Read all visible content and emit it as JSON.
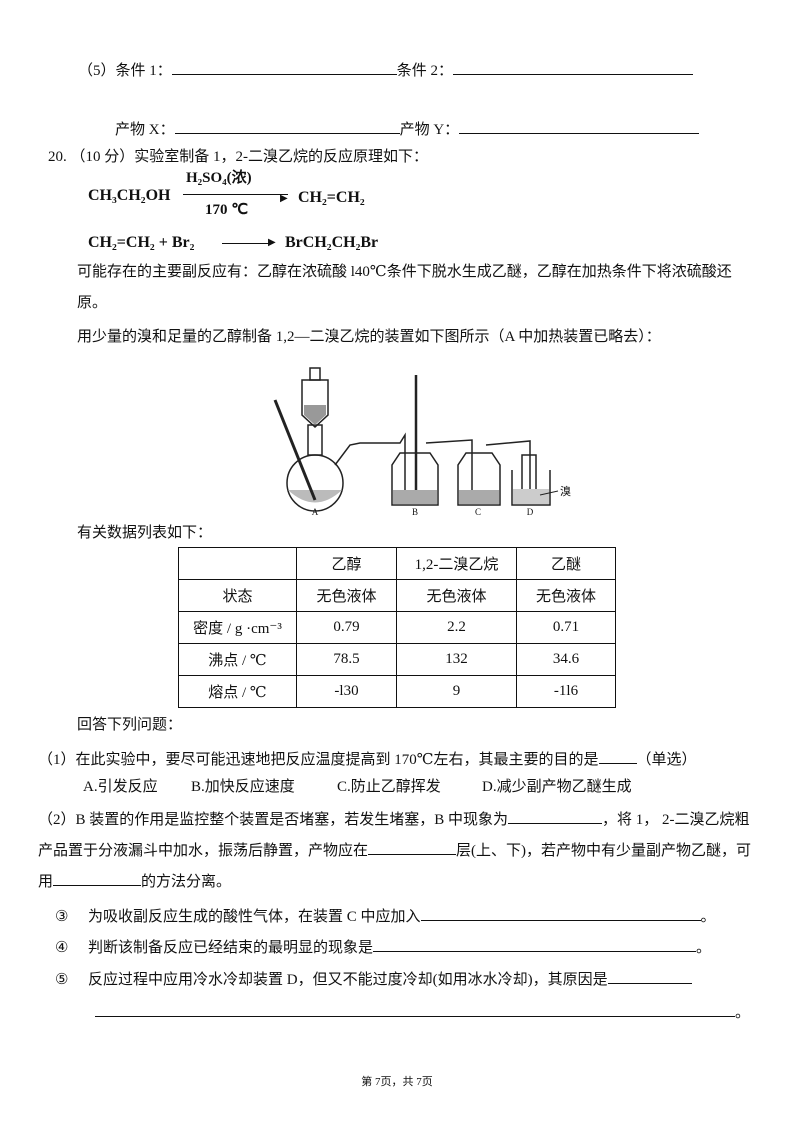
{
  "question5": {
    "condition1": "（5）条件 1：",
    "condition2": "条件 2：",
    "productX": "产物 X：",
    "productY": "产物 Y："
  },
  "question20": {
    "title": "20. （10 分）实验室制备 1，2-二溴乙烷的反应原理如下：",
    "equation1": {
      "reactant": "CH₃CH₂OH",
      "condition_top": "H₂SO₄(浓)",
      "condition_bottom": "170 ℃",
      "product": "CH₂=CH₂"
    },
    "equation2": {
      "reactant": "CH₂=CH₂ + Br₂",
      "product": "BrCH₂CH₂Br"
    },
    "side_reactions": "可能存在的主要副反应有：乙醇在浓硫酸 l40℃条件下脱水生成乙醚，乙醇在加热条件下将浓硫酸还原。",
    "apparatus_intro": "用少量的溴和足量的乙醇制备 1,2—二溴乙烷的装置如下图所示（A 中加热装置已略去）：",
    "figure": {
      "labels": [
        "A",
        "B",
        "C",
        "D"
      ],
      "bromine": "溴"
    },
    "table_intro": "有关数据列表如下：",
    "table": {
      "header": [
        "乙醇",
        "1,2-二溴乙烷",
        "乙醚"
      ],
      "rows": [
        [
          "状态",
          "无色液体",
          "无色液体",
          "无色液体"
        ],
        [
          "密度 / g ·cm⁻³",
          "0.79",
          "2.2",
          "0.71"
        ],
        [
          "沸点 / ℃",
          "78.5",
          "132",
          "34.6"
        ],
        [
          "熔点 / ℃",
          "-l30",
          "9",
          "-1l6"
        ]
      ]
    },
    "answer_intro": "回答下列问题：",
    "q1": {
      "text": "（1）在此实验中，要尽可能迅速地把反应温度提高到 170℃左右，其最主要的目的是",
      "suffix": "（单选）",
      "options": [
        "A.引发反应",
        "B.加快反应速度",
        "C.防止乙醇挥发",
        "D.减少副产物乙醚生成"
      ]
    },
    "q2": {
      "parts": [
        "（2）B 装置的作用是监控整个装置是否堵塞，若发生堵塞，B 中现象为",
        "，将 1， 2-二溴乙烷粗产品置于分液漏斗中加水，振荡后静置，产物应在",
        "层(上、下)，若产物中有少量副产物乙醚，可用",
        "的方法分离。"
      ]
    },
    "q3": {
      "number": "③",
      "text": "为吸收副反应生成的酸性气体，在装置 C 中应加入",
      "end": "。"
    },
    "q4": {
      "number": "④",
      "text": "判断该制备反应已经结束的最明显的现象是",
      "end": "。"
    },
    "q5": {
      "number": "⑤",
      "text": "反应过程中应用冷水冷却装置 D，但又不能过度冷却(如用冰水冷却)，其原因是",
      "end": "。"
    }
  },
  "footer": "第 7页，共 7页"
}
